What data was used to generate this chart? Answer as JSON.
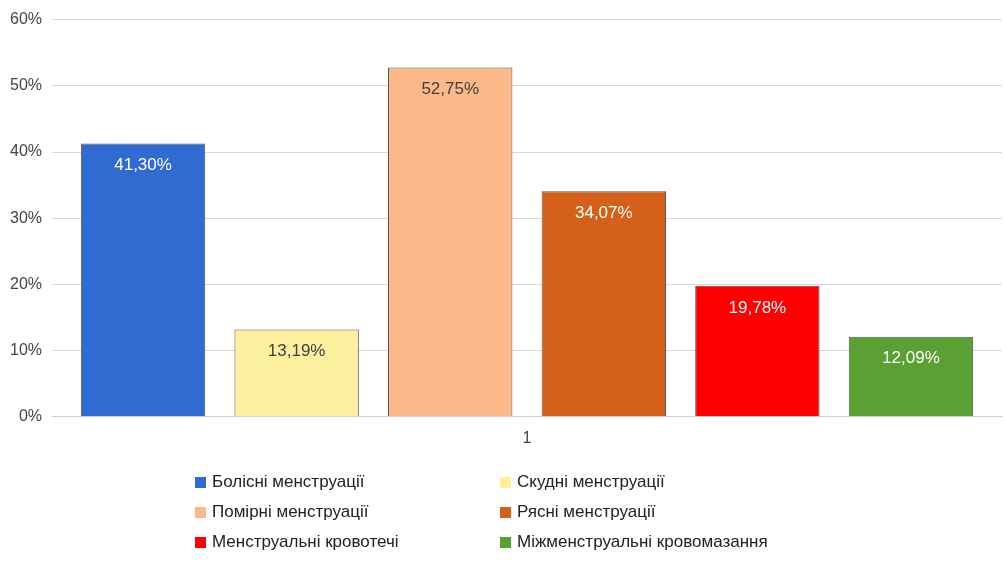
{
  "chart_data": {
    "type": "bar",
    "categories": [
      "1"
    ],
    "series": [
      {
        "name": "Болісні менструації",
        "color": "#2f6bd0",
        "values": [
          41.3
        ],
        "value_labels": [
          "41,30%"
        ]
      },
      {
        "name": "Скудні менструації",
        "color": "#fff0a0",
        "values": [
          13.19
        ],
        "value_labels": [
          "13,19%"
        ]
      },
      {
        "name": "Помірні менструації",
        "color": "#fbb98a",
        "values": [
          52.75
        ],
        "value_labels": [
          "52,75%"
        ]
      },
      {
        "name": "Рясні менструації",
        "color": "#d4601a",
        "values": [
          34.07
        ],
        "value_labels": [
          "34,07%"
        ]
      },
      {
        "name": "Менструальні кровотечі",
        "color": "#ff0000",
        "values": [
          19.78
        ],
        "value_labels": [
          "19,78%"
        ]
      },
      {
        "name": "Міжменструальні кровомазання",
        "color": "#5aa032",
        "values": [
          12.09
        ],
        "value_labels": [
          "12,09%"
        ]
      }
    ],
    "ylim": [
      0,
      60
    ],
    "yticks": [
      {
        "value": 0,
        "label": "0%"
      },
      {
        "value": 10,
        "label": "10%"
      },
      {
        "value": 20,
        "label": "20%"
      },
      {
        "value": 30,
        "label": "30%"
      },
      {
        "value": 40,
        "label": "40%"
      },
      {
        "value": 50,
        "label": "50%"
      },
      {
        "value": 60,
        "label": "60%"
      }
    ],
    "grid": "y",
    "legend": "bottom"
  }
}
